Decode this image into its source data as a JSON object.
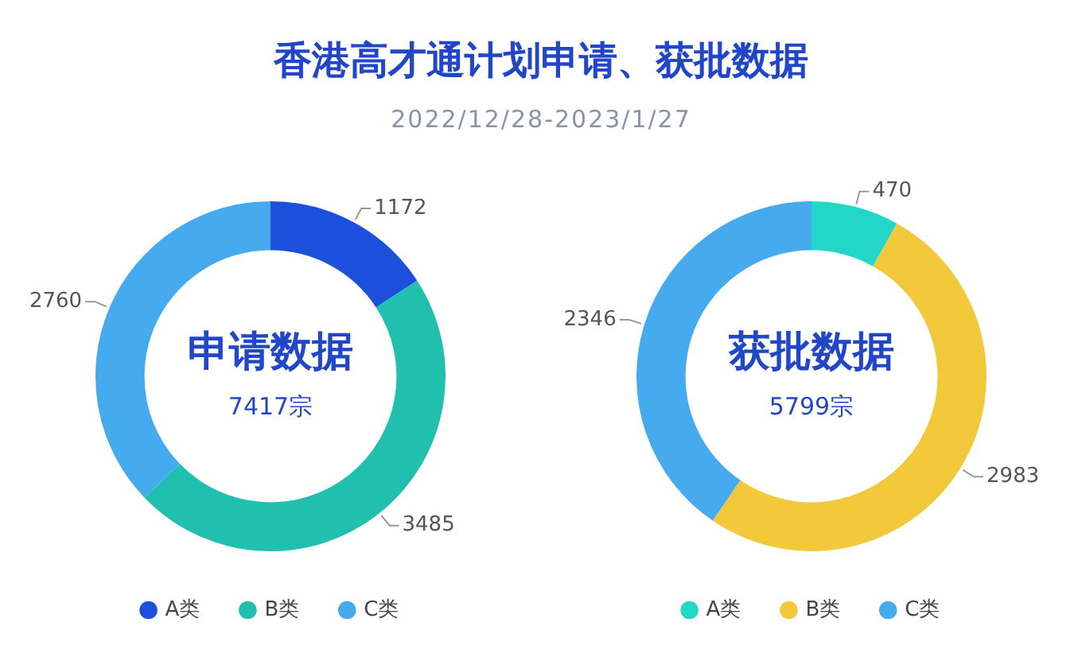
{
  "chart_data": [
    {
      "type": "donut",
      "title": "香港高才通计划申请、获批数据",
      "subtitle": "2022/12/28-2023/1/27",
      "categories": [
        "A类",
        "B类",
        "C类"
      ],
      "values": [
        1172,
        3485,
        2760
      ],
      "colors": [
        "#1c4fdc",
        "#20bfae",
        "#45abee"
      ],
      "data_labels": true,
      "legend": "bottom",
      "annotations": [
        "申请数据",
        "7417宗"
      ]
    },
    {
      "type": "donut",
      "categories": [
        "A类",
        "B类",
        "C类"
      ],
      "values": [
        470,
        2983,
        2346
      ],
      "colors": [
        "#22d6c8",
        "#f3c93c",
        "#45abee"
      ],
      "data_labels": true,
      "legend": "bottom",
      "annotations": [
        "获批数据",
        "5799宗"
      ]
    }
  ]
}
